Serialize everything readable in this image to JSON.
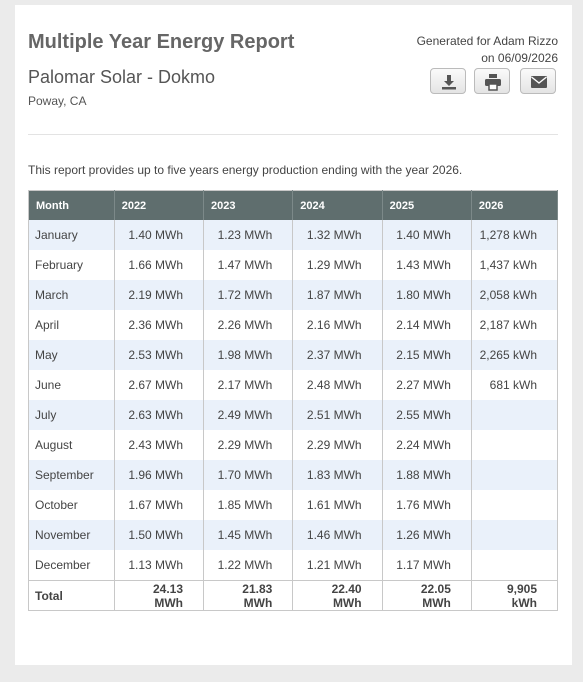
{
  "header": {
    "title": "Multiple Year Energy Report",
    "site": "Palomar Solar - Dokmo",
    "location": "Poway, CA",
    "generated_for": "Generated for Adam Rizzo",
    "generated_on": "on 06/09/2026"
  },
  "intro": "This report provides up to five years energy production ending with the year 2026.",
  "table": {
    "columns": [
      "Month",
      "2022",
      "2023",
      "2024",
      "2025",
      "2026"
    ],
    "rows": [
      [
        "January",
        "1.40 MWh",
        "1.23 MWh",
        "1.32 MWh",
        "1.40 MWh",
        "1,278 kWh"
      ],
      [
        "February",
        "1.66 MWh",
        "1.47 MWh",
        "1.29 MWh",
        "1.43 MWh",
        "1,437 kWh"
      ],
      [
        "March",
        "2.19 MWh",
        "1.72 MWh",
        "1.87 MWh",
        "1.80 MWh",
        "2,058 kWh"
      ],
      [
        "April",
        "2.36 MWh",
        "2.26 MWh",
        "2.16 MWh",
        "2.14 MWh",
        "2,187 kWh"
      ],
      [
        "May",
        "2.53 MWh",
        "1.98 MWh",
        "2.37 MWh",
        "2.15 MWh",
        "2,265 kWh"
      ],
      [
        "June",
        "2.67 MWh",
        "2.17 MWh",
        "2.48 MWh",
        "2.27 MWh",
        "681 kWh"
      ],
      [
        "July",
        "2.63 MWh",
        "2.49 MWh",
        "2.51 MWh",
        "2.55 MWh"
      ],
      [
        "August",
        "2.43 MWh",
        "2.29 MWh",
        "2.29 MWh",
        "2.24 MWh"
      ],
      [
        "September",
        "1.96 MWh",
        "1.70 MWh",
        "1.83 MWh",
        "1.88 MWh"
      ],
      [
        "October",
        "1.67 MWh",
        "1.85 MWh",
        "1.61 MWh",
        "1.76 MWh"
      ],
      [
        "November",
        "1.50 MWh",
        "1.45 MWh",
        "1.46 MWh",
        "1.26 MWh"
      ],
      [
        "December",
        "1.13 MWh",
        "1.22 MWh",
        "1.21 MWh",
        "1.17 MWh"
      ]
    ],
    "total": [
      "Total",
      "24.13 MWh",
      "21.83 MWh",
      "22.40 MWh",
      "22.05 MWh",
      "9,905 kWh"
    ]
  }
}
